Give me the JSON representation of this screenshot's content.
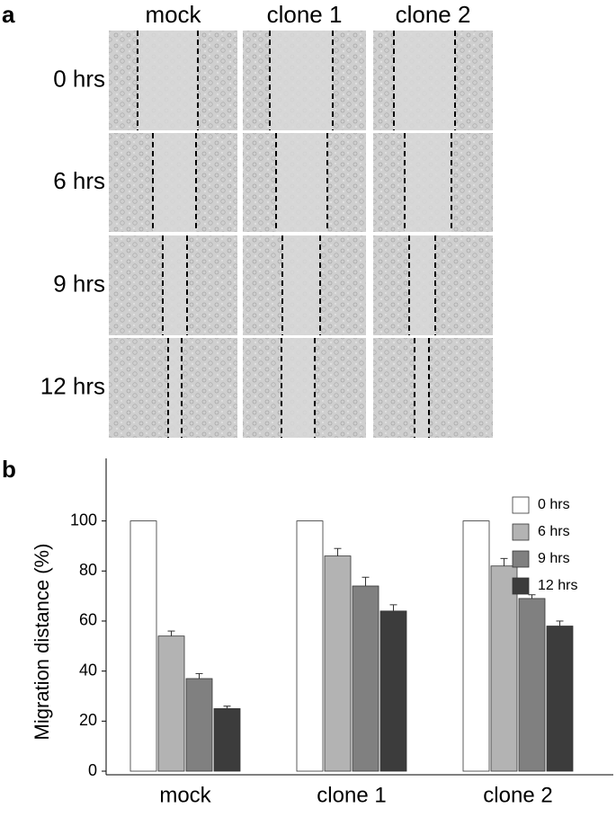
{
  "panel_labels": [
    "a",
    "b"
  ],
  "micrographs": {
    "columns": [
      "mock",
      "clone 1",
      "clone 2"
    ],
    "rows": [
      "0 hrs",
      "6 hrs",
      "9 hrs",
      "12 hrs"
    ]
  },
  "chart_data": {
    "type": "bar",
    "ylabel": "Migration distance (%)",
    "categories": [
      "mock",
      "clone 1",
      "clone 2"
    ],
    "series": [
      {
        "name": "0 hrs",
        "color": "#ffffff",
        "values": [
          100,
          100,
          100
        ],
        "errors": [
          0,
          0,
          0
        ]
      },
      {
        "name": "6 hrs",
        "color": "#b3b3b3",
        "values": [
          54,
          86,
          82
        ],
        "errors": [
          2,
          3,
          3
        ]
      },
      {
        "name": "9 hrs",
        "color": "#808080",
        "values": [
          37,
          74,
          69
        ],
        "errors": [
          2,
          3.5,
          1.5
        ]
      },
      {
        "name": "12 hrs",
        "color": "#3c3c3c",
        "values": [
          25,
          64,
          58
        ],
        "errors": [
          1,
          2.5,
          2
        ]
      }
    ],
    "ylim": [
      0,
      125
    ],
    "yticks": [
      0,
      20,
      40,
      60,
      80,
      100
    ],
    "legend": "upper right"
  }
}
